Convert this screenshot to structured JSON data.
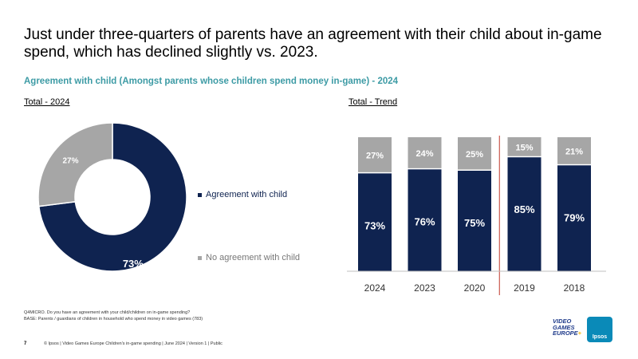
{
  "title": "Just under three-quarters of parents have an agreement with their child about in-game spend, which has declined slightly vs. 2023.",
  "subtitle": "Agreement with child (Amongst parents whose children spend money in-game) - 2024",
  "left_label": "Total - 2024",
  "right_label": "Total - Trend",
  "colors": {
    "agree": "#0f2350",
    "no_agree": "#a6a6a6",
    "divider": "#c0392b",
    "subtitle": "#3d9ba5"
  },
  "chart_data": [
    {
      "type": "pie",
      "title": "Total - 2024",
      "categories": [
        "Agreement with child",
        "No agreement with child"
      ],
      "values": [
        73,
        27
      ],
      "labels": [
        "73%",
        "27%"
      ],
      "legend": "right"
    },
    {
      "type": "bar",
      "stacked": true,
      "title": "Total - Trend",
      "categories": [
        "2024",
        "2023",
        "2020",
        "2019",
        "2018"
      ],
      "series": [
        {
          "name": "Agreement with child",
          "values": [
            73,
            76,
            75,
            85,
            79
          ],
          "labels": [
            "73%",
            "76%",
            "75%",
            "85%",
            "79%"
          ]
        },
        {
          "name": "No agreement with child",
          "values": [
            27,
            24,
            25,
            15,
            21
          ],
          "labels": [
            "27%",
            "24%",
            "25%",
            "15%",
            "21%"
          ]
        }
      ],
      "ylim": [
        0,
        100
      ],
      "divider_after": "2020"
    }
  ],
  "footnotes": [
    "Q4MICRO. Do you have an agreement with your child/children on in-game spending?",
    "BASE: Parents / guardians of children in household who spend money in video games (783)"
  ],
  "page_number": "7",
  "footer": "© Ipsos | Video Games Europe Children's in-game spending | June 2024 | Version 1 | Public",
  "logo_vge": [
    "VIDEO",
    "GAMES",
    "EUROPE"
  ],
  "logo_ipsos": "Ipsos"
}
